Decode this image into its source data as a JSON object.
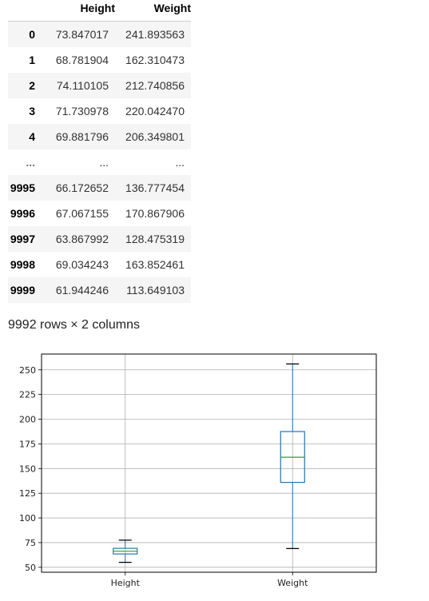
{
  "table": {
    "columns": [
      "Height",
      "Weight"
    ],
    "rows": [
      {
        "index": "0",
        "height": "73.847017",
        "weight": "241.893563"
      },
      {
        "index": "1",
        "height": "68.781904",
        "weight": "162.310473"
      },
      {
        "index": "2",
        "height": "74.110105",
        "weight": "212.740856"
      },
      {
        "index": "3",
        "height": "71.730978",
        "weight": "220.042470"
      },
      {
        "index": "4",
        "height": "69.881796",
        "weight": "206.349801"
      },
      {
        "index": "...",
        "height": "...",
        "weight": "..."
      },
      {
        "index": "9995",
        "height": "66.172652",
        "weight": "136.777454"
      },
      {
        "index": "9996",
        "height": "67.067155",
        "weight": "170.867906"
      },
      {
        "index": "9997",
        "height": "63.867992",
        "weight": "128.475319"
      },
      {
        "index": "9998",
        "height": "69.034243",
        "weight": "163.852461"
      },
      {
        "index": "9999",
        "height": "61.944246",
        "weight": "113.649103"
      }
    ],
    "shape_caption": "9992 rows × 2 columns"
  },
  "chart_data": {
    "type": "boxplot",
    "categories": [
      "Height",
      "Weight"
    ],
    "boxes": [
      {
        "name": "Height",
        "whisker_low": 55,
        "q1": 63.5,
        "median": 66.3,
        "q3": 69.2,
        "whisker_high": 77.5
      },
      {
        "name": "Weight",
        "whisker_low": 69,
        "q1": 136,
        "median": 161.5,
        "q3": 187.5,
        "whisker_high": 256
      }
    ],
    "yticks": [
      50,
      75,
      100,
      125,
      150,
      175,
      200,
      225,
      250
    ],
    "ylim": [
      45,
      266
    ],
    "grid": true,
    "colors": {
      "box": "#1f77b4",
      "median": "#2ca02c",
      "whisker_cap": "#000000",
      "grid": "#b0b0b0"
    }
  }
}
